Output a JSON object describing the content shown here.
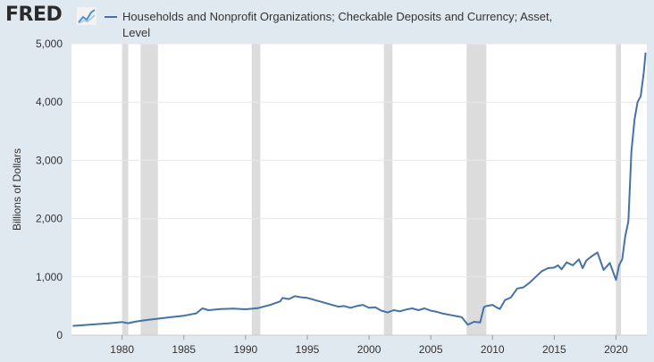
{
  "logo": {
    "text": "FRED",
    "icon": "fred-graph-icon"
  },
  "colors": {
    "series": "#4572a7",
    "recession": "#dcdcdc",
    "grid": "#e8e8e8",
    "background": "#e1e9f0",
    "plot": "#ffffff"
  },
  "chart_data": {
    "type": "line",
    "title": "Households and Nonprofit Organizations; Checkable Deposits and Currency; Asset, Level",
    "xlabel": "",
    "ylabel": "Billions of Dollars",
    "xlim": [
      1975.9,
      2022.5
    ],
    "ylim": [
      0,
      5000
    ],
    "y_ticks": [
      0,
      1000,
      2000,
      3000,
      4000,
      5000
    ],
    "y_tick_labels": [
      "0",
      "1,000",
      "2,000",
      "3,000",
      "4,000",
      "5,000"
    ],
    "x_ticks": [
      1980,
      1985,
      1990,
      1995,
      2000,
      2005,
      2010,
      2015,
      2020
    ],
    "x_tick_labels": [
      "1980",
      "1985",
      "1990",
      "1995",
      "2000",
      "2005",
      "2010",
      "2015",
      "2020"
    ],
    "grid": true,
    "recessions": [
      [
        1980.0,
        1980.5
      ],
      [
        1981.5,
        1982.9
      ],
      [
        1990.5,
        1991.2
      ],
      [
        2001.2,
        2001.9
      ],
      [
        2007.9,
        2009.5
      ],
      [
        2020.0,
        2020.4
      ]
    ],
    "series": [
      {
        "name": "Households and Nonprofit Organizations; Checkable Deposits and Currency; Asset, Level",
        "x": [
          1976.0,
          1977.0,
          1978.0,
          1979.0,
          1980.0,
          1980.5,
          1981.0,
          1982.0,
          1983.0,
          1984.0,
          1985.0,
          1986.0,
          1986.5,
          1987.0,
          1988.0,
          1989.0,
          1990.0,
          1991.0,
          1992.0,
          1992.8,
          1993.0,
          1993.5,
          1994.0,
          1994.5,
          1995.0,
          1996.0,
          1997.0,
          1997.5,
          1998.0,
          1998.5,
          1999.0,
          1999.5,
          2000.0,
          2000.5,
          2001.0,
          2001.5,
          2002.0,
          2002.5,
          2003.0,
          2003.5,
          2004.0,
          2004.5,
          2005.0,
          2005.5,
          2006.0,
          2006.5,
          2007.0,
          2007.5,
          2008.0,
          2008.5,
          2009.0,
          2009.3,
          2009.5,
          2010.0,
          2010.3,
          2010.6,
          2011.0,
          2011.5,
          2012.0,
          2012.5,
          2013.0,
          2013.5,
          2014.0,
          2014.5,
          2015.0,
          2015.3,
          2015.6,
          2016.0,
          2016.5,
          2017.0,
          2017.3,
          2017.6,
          2018.0,
          2018.5,
          2019.0,
          2019.5,
          2020.0,
          2020.25,
          2020.5,
          2020.75,
          2021.0,
          2021.25,
          2021.5,
          2021.75,
          2022.0,
          2022.25,
          2022.4
        ],
        "values": [
          160,
          175,
          190,
          205,
          225,
          205,
          230,
          260,
          285,
          310,
          335,
          375,
          460,
          430,
          450,
          455,
          445,
          465,
          520,
          580,
          640,
          620,
          670,
          650,
          640,
          580,
          520,
          490,
          500,
          470,
          500,
          520,
          470,
          480,
          420,
          390,
          430,
          410,
          440,
          460,
          430,
          460,
          420,
          400,
          370,
          350,
          330,
          310,
          180,
          230,
          220,
          480,
          500,
          520,
          480,
          450,
          600,
          650,
          800,
          820,
          900,
          1000,
          1100,
          1150,
          1160,
          1200,
          1130,
          1250,
          1200,
          1300,
          1150,
          1280,
          1350,
          1420,
          1120,
          1240,
          950,
          1200,
          1300,
          1700,
          1950,
          3150,
          3700,
          4000,
          4100,
          4500,
          4850
        ]
      }
    ]
  }
}
